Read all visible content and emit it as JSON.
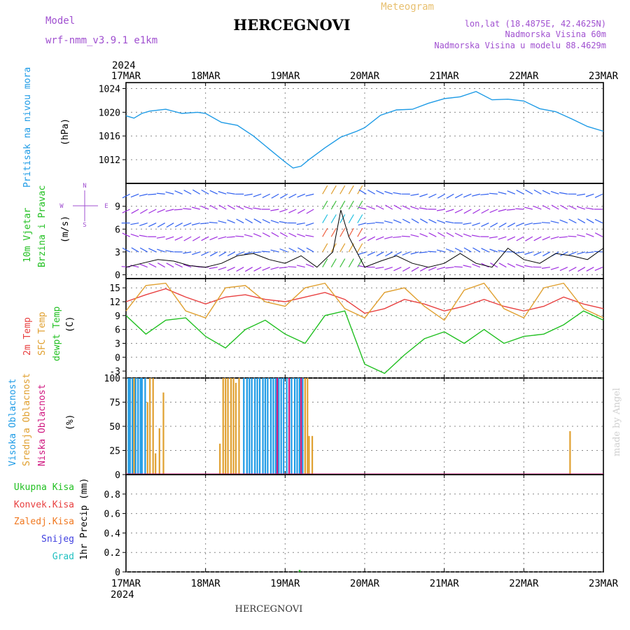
{
  "header": {
    "model_label": "Model",
    "model_name": "wrf-nmm_v3.9.1  e1km",
    "title": "HERCEGNOVI",
    "meteogram": "Meteogram",
    "lonlat": "lon,lat (18.4875E, 42.4625N)",
    "elevation": "Nadmorska Visina 60m",
    "model_elevation": "Nadmorska Visina u modelu 88.4629m"
  },
  "footer": {
    "station": "HERCEGNOVI",
    "credit": "made by Angel"
  },
  "colors": {
    "pressure": "#1e9be6",
    "temp2m": "#e84040",
    "sfc": "#e0a030",
    "dew": "#22c022",
    "high": "#1e9be6",
    "mid": "#e0a030",
    "low": "#d01880",
    "wind_label": "#22c022",
    "purple": "#a050d0",
    "orange_hdr": "#e8c070"
  },
  "time_axis": {
    "year": "2024",
    "labels": [
      "17MAR",
      "18MAR",
      "19MAR",
      "20MAR",
      "21MAR",
      "22MAR",
      "23MAR"
    ]
  },
  "chart_data": [
    {
      "type": "line",
      "name": "pressure",
      "ylabel_main": "Pritisak na nivou mora",
      "unit": "(hPa)",
      "yticks": [
        "1012",
        "1016",
        "1020",
        "1024"
      ],
      "ylim": [
        1008,
        1025
      ],
      "x_days": [
        0,
        0.1,
        0.2,
        0.3,
        0.5,
        0.7,
        0.9,
        1.0,
        1.2,
        1.4,
        1.6,
        1.8,
        2.0,
        2.1,
        2.2,
        2.3,
        2.5,
        2.7,
        2.9,
        3.0,
        3.2,
        3.4,
        3.6,
        3.8,
        4.0,
        4.2,
        4.4,
        4.6,
        4.8,
        5.0,
        5.2,
        5.4,
        5.6,
        5.8,
        6.0
      ],
      "values": [
        1019.4,
        1019.0,
        1019.8,
        1020.2,
        1020.5,
        1019.8,
        1020.0,
        1019.8,
        1018.3,
        1017.8,
        1016.0,
        1013.8,
        1011.6,
        1010.6,
        1010.9,
        1012.0,
        1014.0,
        1015.8,
        1016.8,
        1017.4,
        1019.5,
        1020.4,
        1020.5,
        1021.5,
        1022.3,
        1022.6,
        1023.5,
        1022.1,
        1022.2,
        1021.9,
        1020.6,
        1020.1,
        1018.9,
        1017.6,
        1016.8
      ]
    },
    {
      "type": "line",
      "name": "wind",
      "ylabel_main": "10m Vjetar",
      "ylabel_sub": "Brzina i Pravac",
      "unit": "(m/s)",
      "compass": [
        "N",
        "E",
        "S",
        "W"
      ],
      "yticks": [
        "0",
        "3",
        "6",
        "9"
      ],
      "ylim": [
        -0.5,
        12
      ],
      "x_days": [
        0,
        0.2,
        0.4,
        0.6,
        0.8,
        1.0,
        1.2,
        1.4,
        1.6,
        1.8,
        2.0,
        2.2,
        2.4,
        2.6,
        2.7,
        2.8,
        2.9,
        3.0,
        3.2,
        3.4,
        3.6,
        3.8,
        4.0,
        4.2,
        4.4,
        4.6,
        4.8,
        5.0,
        5.2,
        5.4,
        5.6,
        5.8,
        6.0
      ],
      "values": [
        1.0,
        1.5,
        2.0,
        1.8,
        1.2,
        1.0,
        1.5,
        2.5,
        2.8,
        2.0,
        1.5,
        2.5,
        1.0,
        3.0,
        8.5,
        5.0,
        3.0,
        1.0,
        1.8,
        2.5,
        1.5,
        1.0,
        1.5,
        2.8,
        1.5,
        1.0,
        3.5,
        2.0,
        1.5,
        2.8,
        2.5,
        2.0,
        3.5
      ]
    },
    {
      "type": "line",
      "name": "temperature",
      "ylabels": [
        "2m Temp",
        "SFC Temp",
        "dewpt Temp"
      ],
      "unit": "(C)",
      "yticks": [
        "-3",
        "0",
        "3",
        "6",
        "9",
        "12",
        "15"
      ],
      "ylim": [
        -4.5,
        17
      ],
      "x_days": [
        0,
        0.25,
        0.5,
        0.75,
        1.0,
        1.25,
        1.5,
        1.75,
        2.0,
        2.25,
        2.5,
        2.75,
        3.0,
        3.25,
        3.5,
        3.75,
        4.0,
        4.25,
        4.5,
        4.75,
        5.0,
        5.25,
        5.5,
        5.75,
        6.0
      ],
      "series": [
        {
          "name": "2m Temp",
          "values": [
            12.0,
            13.5,
            14.8,
            13.0,
            11.5,
            13.0,
            13.5,
            12.5,
            12.0,
            13.0,
            14.0,
            12.5,
            9.5,
            10.5,
            12.5,
            11.5,
            10.0,
            11.0,
            12.5,
            11.0,
            10.0,
            11.0,
            13.0,
            11.5,
            10.5
          ]
        },
        {
          "name": "SFC Temp",
          "values": [
            10.0,
            15.5,
            16.0,
            10.0,
            8.5,
            15.0,
            15.5,
            12.0,
            11.0,
            15.0,
            16.0,
            10.5,
            8.5,
            14.0,
            15.0,
            11.0,
            8.0,
            14.5,
            16.0,
            10.5,
            8.5,
            15.0,
            16.0,
            10.5,
            8.5
          ]
        },
        {
          "name": "dewpt Temp",
          "values": [
            9.0,
            5.0,
            8.0,
            8.5,
            4.5,
            2.0,
            6.0,
            8.0,
            5.0,
            3.0,
            9.0,
            10.0,
            -1.5,
            -3.5,
            0.5,
            4.0,
            5.5,
            3.0,
            6.0,
            3.0,
            4.5,
            5.0,
            7.0,
            10.0,
            8.0
          ]
        }
      ]
    },
    {
      "type": "bar",
      "name": "cloudiness",
      "ylabels": [
        "Visoka Oblacnost",
        "Srednja Oblacnost",
        "Niska Oblacnost"
      ],
      "unit": "(%)",
      "yticks": [
        "0",
        "25",
        "50",
        "75",
        "100"
      ],
      "ylim": [
        0,
        100
      ],
      "series": [
        {
          "name": "Visoka Oblacnost",
          "x_days": [
            0.03,
            0.05,
            0.08,
            0.12,
            0.15,
            0.18,
            0.2,
            0.24,
            1.48,
            1.52,
            1.55,
            1.58,
            1.62,
            1.65,
            1.68,
            1.72,
            1.75,
            1.78,
            1.82,
            1.85,
            1.88,
            1.92,
            1.95,
            1.98,
            2.02,
            2.05,
            2.08,
            2.12,
            2.15,
            2.18,
            2.22
          ],
          "values": [
            100,
            100,
            100,
            100,
            100,
            100,
            100,
            100,
            100,
            100,
            100,
            100,
            100,
            100,
            100,
            100,
            100,
            100,
            100,
            100,
            100,
            100,
            100,
            100,
            100,
            100,
            100,
            100,
            100,
            100,
            100
          ]
        },
        {
          "name": "Srednja Oblacnost",
          "x_days": [
            0.1,
            0.27,
            0.3,
            0.34,
            0.37,
            0.42,
            0.47,
            0.5,
            1.18,
            1.22,
            1.25,
            1.28,
            1.32,
            1.35,
            1.38,
            1.42,
            2.25,
            2.28,
            2.3,
            2.34,
            5.58
          ],
          "values": [
            100,
            75,
            100,
            100,
            22,
            48,
            85,
            0,
            32,
            100,
            100,
            100,
            100,
            100,
            95,
            100,
            100,
            100,
            40,
            40,
            45
          ]
        },
        {
          "name": "Niska Oblacnost",
          "x_days": [
            1.9,
            2.05,
            2.2
          ],
          "values": [
            100,
            100,
            100
          ]
        }
      ]
    },
    {
      "type": "bar",
      "name": "precipitation",
      "ylabels": [
        "Ukupna Kisa",
        "Konvek.Kisa",
        "Zaledj.Kisa",
        "Snijeg",
        "Grad"
      ],
      "unit": "1hr Precip (mm)",
      "yticks": [
        "0",
        "0.2",
        "0.4",
        "0.6",
        "0.8"
      ],
      "ylim": [
        0,
        1.0
      ],
      "x_days": [
        2.18
      ],
      "values": [
        0.02
      ]
    }
  ]
}
